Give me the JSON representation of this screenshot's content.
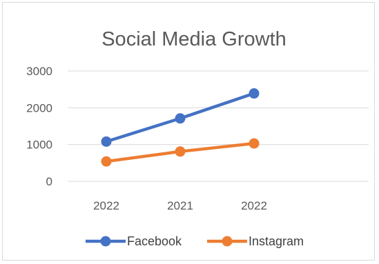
{
  "chart_data": {
    "type": "line",
    "title": "Social Media Growth",
    "categories": [
      "2022",
      "2021",
      "2022"
    ],
    "ylim": [
      0,
      3000
    ],
    "yticks": [
      0,
      1000,
      2000,
      3000
    ],
    "grid": true,
    "legend_position": "bottom",
    "series": [
      {
        "name": "Facebook",
        "values": [
          1080,
          1710,
          2390
        ],
        "color": "#4472C4"
      },
      {
        "name": "Instagram",
        "values": [
          540,
          810,
          1030
        ],
        "color": "#ED7D31"
      }
    ]
  }
}
